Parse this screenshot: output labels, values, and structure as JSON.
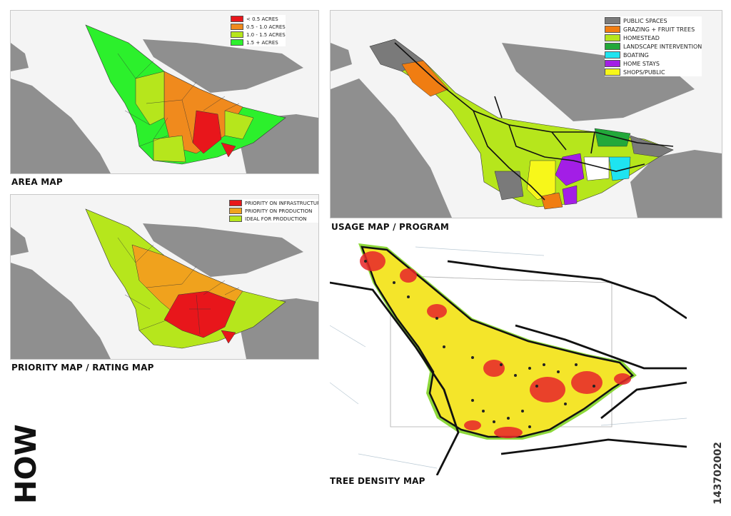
{
  "maps": {
    "area": {
      "title": "AREA MAP",
      "legend": [
        {
          "label": "< 0.5 ACRES",
          "color": "#e8161b"
        },
        {
          "label": "0.5 - 1.0 ACRES",
          "color": "#f08a1d"
        },
        {
          "label": "1.0 - 1.5 ACRES",
          "color": "#b6e61c"
        },
        {
          "label": "1.5 + ACRES",
          "color": "#2cf02c"
        }
      ]
    },
    "priority": {
      "title": "PRIORITY MAP / RATING MAP",
      "legend": [
        {
          "label": "PRIORITY ON INFRASTRUCTURE",
          "color": "#e8161b"
        },
        {
          "label": "PRIORITY ON PRODUCTION",
          "color": "#f0a21d"
        },
        {
          "label": "IDEAL FOR PRODUCTION",
          "color": "#b6e61c"
        }
      ]
    },
    "usage": {
      "title": "USAGE MAP / PROGRAM",
      "legend": [
        {
          "label": "PUBLIC SPACES",
          "color": "#7a7a7a"
        },
        {
          "label": "GRAZING + FRUIT TREES",
          "color": "#f07d12"
        },
        {
          "label": "HOMESTEAD",
          "color": "#b6e61c"
        },
        {
          "label": "LANDSCAPE INTERVENTION",
          "color": "#22a83a"
        },
        {
          "label": "BOATING",
          "color": "#1ee4f0"
        },
        {
          "label": "HOME STAYS",
          "color": "#a31ee6"
        },
        {
          "label": "SHOPS/PUBLIC",
          "color": "#f7f71a"
        }
      ]
    },
    "tree": {
      "title": "TREE DENSITY MAP"
    }
  },
  "side_label": "HOW",
  "student_id": "143702002",
  "colors": {
    "land_gray": "#8f8f8f",
    "panel_bg": "#f4f4f4",
    "outline": "#111111"
  }
}
